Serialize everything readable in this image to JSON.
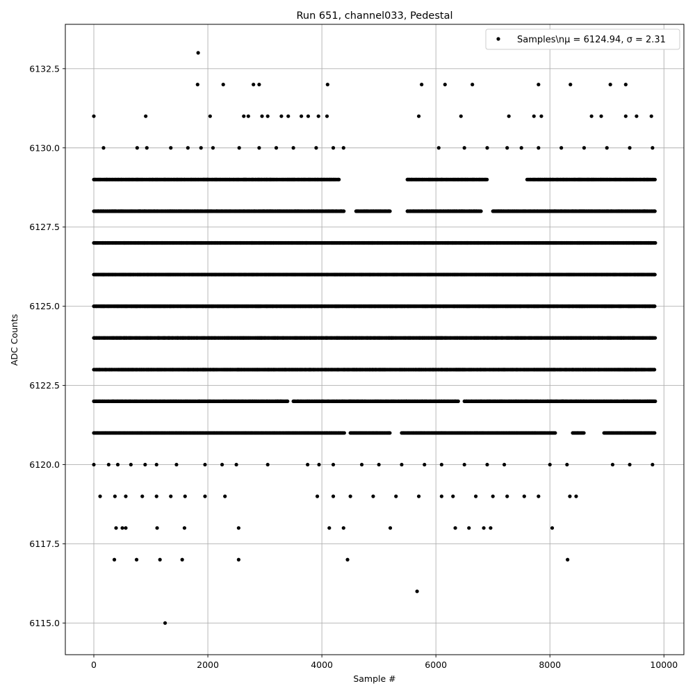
{
  "chart_data": {
    "type": "scatter",
    "title": "Run 651, channel033, Pedestal",
    "xlabel": "Sample #",
    "ylabel": "ADC Counts",
    "xlim": [
      -500,
      10350
    ],
    "ylim": [
      6114.0,
      6133.9
    ],
    "x_ticks": [
      0,
      2000,
      4000,
      6000,
      8000,
      10000
    ],
    "x_tick_labels": [
      "0",
      "2000",
      "4000",
      "6000",
      "8000",
      "10000"
    ],
    "y_ticks": [
      6115.0,
      6117.5,
      6120.0,
      6122.5,
      6125.0,
      6127.5,
      6130.0,
      6132.5
    ],
    "y_tick_labels": [
      "6115.0",
      "6117.5",
      "6120.0",
      "6122.5",
      "6125.0",
      "6127.5",
      "6130.0",
      "6132.5"
    ],
    "grid": true,
    "legend_position": "top-right",
    "series": [
      {
        "name": "Samples\\n$\\mu$ = 6124.94, $\\sigma$ = 2.31",
        "legend_text": "Samples\\nμ = 6124.94, σ = 2.31",
        "color": "#000000",
        "marker": "circle",
        "sample_range": [
          0,
          9850
        ],
        "level_spans": [
          {
            "y": 6121,
            "ranges": [
              [
                0,
                4400
              ],
              [
                4500,
                5200
              ],
              [
                5400,
                8100
              ],
              [
                8400,
                8600
              ],
              [
                8950,
                9850
              ]
            ]
          },
          {
            "y": 6122,
            "ranges": [
              [
                0,
                3400
              ],
              [
                3500,
                6400
              ],
              [
                6500,
                9850
              ]
            ]
          },
          {
            "y": 6123,
            "ranges": [
              [
                0,
                9850
              ]
            ]
          },
          {
            "y": 6124,
            "ranges": [
              [
                0,
                9850
              ]
            ]
          },
          {
            "y": 6125,
            "ranges": [
              [
                0,
                9850
              ]
            ]
          },
          {
            "y": 6126,
            "ranges": [
              [
                0,
                9850
              ]
            ]
          },
          {
            "y": 6127,
            "ranges": [
              [
                0,
                9850
              ]
            ]
          },
          {
            "y": 6128,
            "ranges": [
              [
                0,
                4400
              ],
              [
                4600,
                5200
              ],
              [
                5500,
                6800
              ],
              [
                7000,
                9850
              ]
            ]
          },
          {
            "y": 6129,
            "ranges": [
              [
                0,
                4300
              ],
              [
                5500,
                6900
              ],
              [
                7600,
                9850
              ]
            ]
          }
        ],
        "sparse_points": [
          [
            0,
            6131
          ],
          [
            910,
            6131
          ],
          [
            2040,
            6131
          ],
          [
            2630,
            6131
          ],
          [
            2710,
            6131
          ],
          [
            2950,
            6131
          ],
          [
            3050,
            6131
          ],
          [
            3290,
            6131
          ],
          [
            3410,
            6131
          ],
          [
            3640,
            6131
          ],
          [
            3760,
            6131
          ],
          [
            3940,
            6131
          ],
          [
            4090,
            6131
          ],
          [
            5700,
            6131
          ],
          [
            6440,
            6131
          ],
          [
            7280,
            6131
          ],
          [
            7720,
            6131
          ],
          [
            7850,
            6131
          ],
          [
            8730,
            6131
          ],
          [
            8900,
            6131
          ],
          [
            9330,
            6131
          ],
          [
            9520,
            6131
          ],
          [
            9780,
            6131
          ],
          [
            1820,
            6132
          ],
          [
            2270,
            6132
          ],
          [
            2800,
            6132
          ],
          [
            2900,
            6132
          ],
          [
            4100,
            6132
          ],
          [
            5750,
            6132
          ],
          [
            6160,
            6132
          ],
          [
            6640,
            6132
          ],
          [
            7800,
            6132
          ],
          [
            8360,
            6132
          ],
          [
            9060,
            6132
          ],
          [
            9330,
            6132
          ],
          [
            1830,
            6133
          ],
          [
            170,
            6130
          ],
          [
            760,
            6130
          ],
          [
            930,
            6130
          ],
          [
            1350,
            6130
          ],
          [
            1650,
            6130
          ],
          [
            1880,
            6130
          ],
          [
            2090,
            6130
          ],
          [
            2550,
            6130
          ],
          [
            2900,
            6130
          ],
          [
            3200,
            6130
          ],
          [
            3500,
            6130
          ],
          [
            3900,
            6130
          ],
          [
            4200,
            6130
          ],
          [
            4380,
            6130
          ],
          [
            6050,
            6130
          ],
          [
            6500,
            6130
          ],
          [
            6900,
            6130
          ],
          [
            7250,
            6130
          ],
          [
            7500,
            6130
          ],
          [
            7800,
            6130
          ],
          [
            8200,
            6130
          ],
          [
            8600,
            6130
          ],
          [
            9000,
            6130
          ],
          [
            9400,
            6130
          ],
          [
            9800,
            6130
          ],
          [
            0,
            6120
          ],
          [
            260,
            6120
          ],
          [
            420,
            6120
          ],
          [
            650,
            6120
          ],
          [
            900,
            6120
          ],
          [
            1100,
            6120
          ],
          [
            1450,
            6120
          ],
          [
            1950,
            6120
          ],
          [
            2250,
            6120
          ],
          [
            2500,
            6120
          ],
          [
            3050,
            6120
          ],
          [
            3750,
            6120
          ],
          [
            3950,
            6120
          ],
          [
            4200,
            6120
          ],
          [
            4700,
            6120
          ],
          [
            5000,
            6120
          ],
          [
            5400,
            6120
          ],
          [
            5800,
            6120
          ],
          [
            6100,
            6120
          ],
          [
            6500,
            6120
          ],
          [
            6900,
            6120
          ],
          [
            7200,
            6120
          ],
          [
            8000,
            6120
          ],
          [
            8300,
            6120
          ],
          [
            9100,
            6120
          ],
          [
            9400,
            6120
          ],
          [
            9800,
            6120
          ],
          [
            110,
            6119
          ],
          [
            370,
            6119
          ],
          [
            560,
            6119
          ],
          [
            850,
            6119
          ],
          [
            1100,
            6119
          ],
          [
            1350,
            6119
          ],
          [
            1600,
            6119
          ],
          [
            1950,
            6119
          ],
          [
            2300,
            6119
          ],
          [
            3920,
            6119
          ],
          [
            4200,
            6119
          ],
          [
            4500,
            6119
          ],
          [
            4900,
            6119
          ],
          [
            5300,
            6119
          ],
          [
            5700,
            6119
          ],
          [
            6100,
            6119
          ],
          [
            6300,
            6119
          ],
          [
            6700,
            6119
          ],
          [
            7000,
            6119
          ],
          [
            7250,
            6119
          ],
          [
            7550,
            6119
          ],
          [
            7800,
            6119
          ],
          [
            8350,
            6119
          ],
          [
            8460,
            6119
          ],
          [
            390,
            6118
          ],
          [
            500,
            6118
          ],
          [
            560,
            6118
          ],
          [
            1110,
            6118
          ],
          [
            1590,
            6118
          ],
          [
            2540,
            6118
          ],
          [
            4130,
            6118
          ],
          [
            4380,
            6118
          ],
          [
            5200,
            6118
          ],
          [
            6340,
            6118
          ],
          [
            6580,
            6118
          ],
          [
            6840,
            6118
          ],
          [
            6960,
            6118
          ],
          [
            8040,
            6118
          ],
          [
            360,
            6117
          ],
          [
            750,
            6117
          ],
          [
            1160,
            6117
          ],
          [
            1550,
            6117
          ],
          [
            2540,
            6117
          ],
          [
            4450,
            6117
          ],
          [
            8310,
            6117
          ],
          [
            5670,
            6116
          ],
          [
            1250,
            6115
          ]
        ]
      }
    ]
  }
}
